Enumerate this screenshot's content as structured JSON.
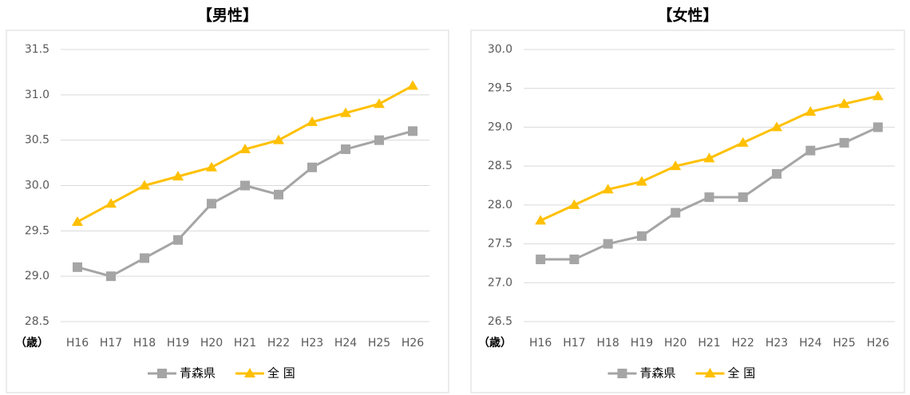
{
  "chart_data": [
    {
      "type": "line",
      "title": "【男性】",
      "y_label": "（歳）",
      "categories": [
        "H16",
        "H17",
        "H18",
        "H19",
        "H20",
        "H21",
        "H22",
        "H23",
        "H24",
        "H25",
        "H26"
      ],
      "series": [
        {
          "name": "青森県",
          "color": "#a5a5a5",
          "marker": "square",
          "values": [
            29.1,
            29.0,
            29.2,
            29.4,
            29.8,
            30.0,
            29.9,
            30.2,
            30.4,
            30.5,
            30.6
          ]
        },
        {
          "name": "全 国",
          "color": "#ffc000",
          "marker": "triangle",
          "values": [
            29.6,
            29.8,
            30.0,
            30.1,
            30.2,
            30.4,
            30.5,
            30.7,
            30.8,
            30.9,
            31.1
          ]
        }
      ],
      "ylim": [
        28.5,
        31.5
      ],
      "yticks": [
        28.5,
        {
          "value": 29,
          "label": "29.0"
        },
        29.5,
        {
          "value": 30,
          "label": "30.0"
        },
        30.5,
        {
          "value": 31,
          "label": "31.0"
        },
        31.5
      ],
      "grid": true,
      "legend": "bottom"
    },
    {
      "type": "line",
      "title": "【女性】",
      "y_label": "（歳）",
      "categories": [
        "H16",
        "H17",
        "H18",
        "H19",
        "H20",
        "H21",
        "H22",
        "H23",
        "H24",
        "H25",
        "H26"
      ],
      "series": [
        {
          "name": "青森県",
          "color": "#a5a5a5",
          "marker": "square",
          "values": [
            27.3,
            27.3,
            27.5,
            27.6,
            27.9,
            28.1,
            28.1,
            28.4,
            28.7,
            28.8,
            29.0
          ]
        },
        {
          "name": "全 国",
          "color": "#ffc000",
          "marker": "triangle",
          "values": [
            27.8,
            28.0,
            28.2,
            28.3,
            28.5,
            28.6,
            28.8,
            29.0,
            29.2,
            29.3,
            29.4
          ]
        }
      ],
      "ylim": [
        26.5,
        30.0
      ],
      "yticks": [
        26.5,
        {
          "value": 27,
          "label": "27.0"
        },
        27.5,
        {
          "value": 28,
          "label": "28.0"
        },
        28.5,
        {
          "value": 29,
          "label": "29.0"
        },
        29.5,
        {
          "value": 30,
          "label": "30.0"
        }
      ],
      "grid": true,
      "legend": "bottom"
    }
  ]
}
